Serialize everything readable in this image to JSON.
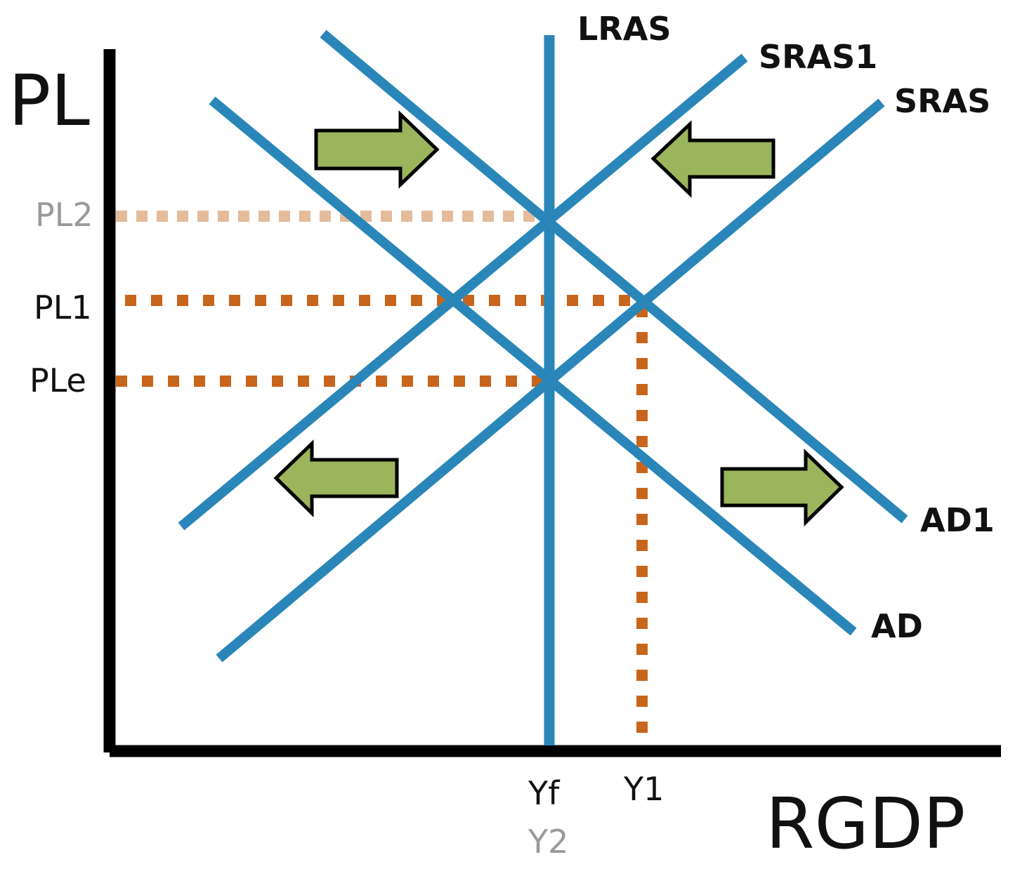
{
  "axes": {
    "y_label": "PL",
    "x_label": "RGDP"
  },
  "price_levels": {
    "pl2": "PL2",
    "pl1": "PL1",
    "ple": "PLe"
  },
  "outputs": {
    "yf": "Yf",
    "y2": "Y2",
    "y1": "Y1"
  },
  "curves": {
    "lras": "LRAS",
    "sras1": "SRAS1",
    "sras": "SRAS",
    "ad1": "AD1",
    "ad": "AD"
  },
  "colors": {
    "curve": "#2a86b8",
    "guide": "#c8651c",
    "guide_faded": "#e4bc9c",
    "arrow_fill": "#9bb55c",
    "axis": "#000000"
  }
}
